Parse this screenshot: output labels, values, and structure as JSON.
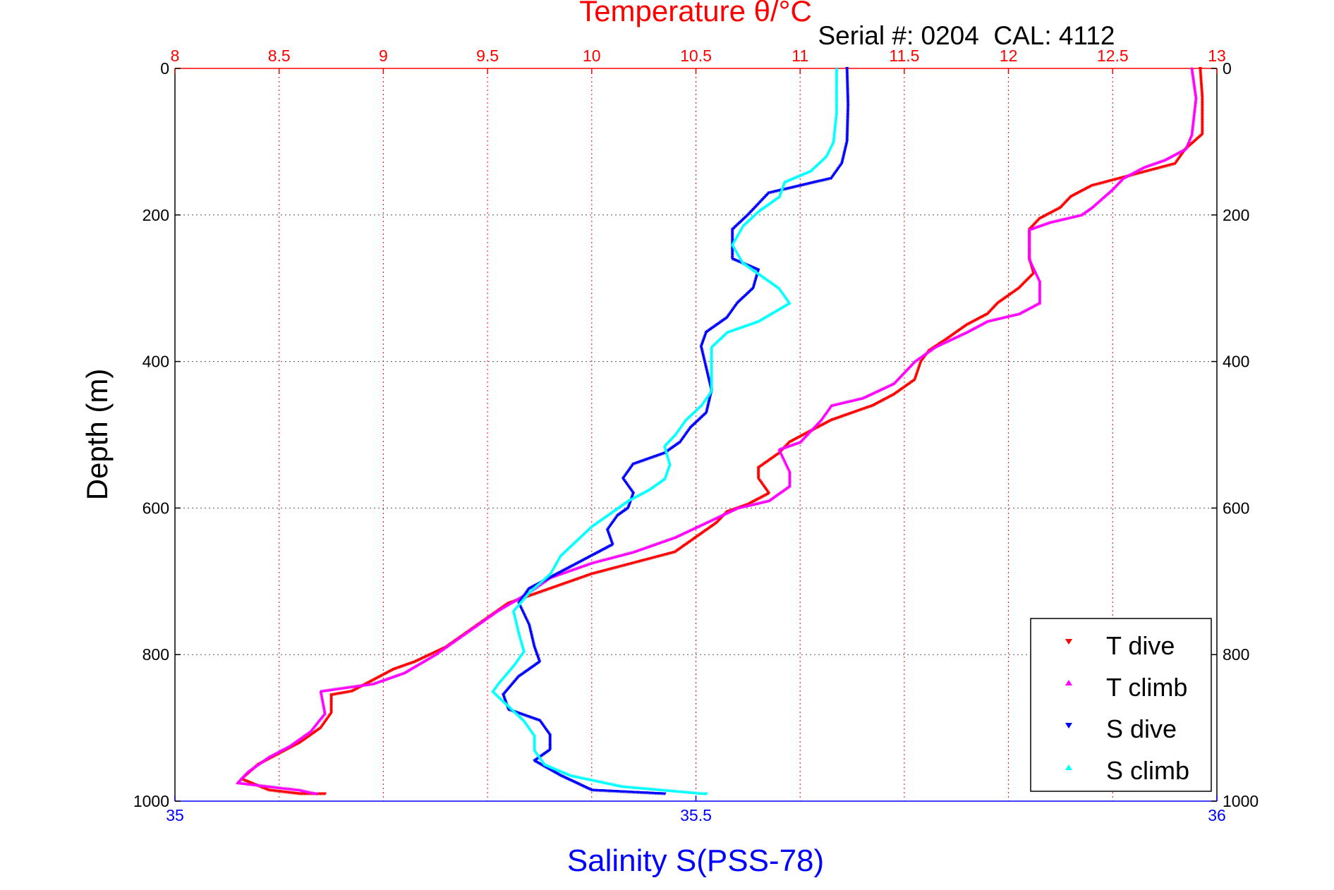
{
  "chart_data": {
    "type": "scatter",
    "title": "Temperature θ/°C",
    "subtitle": "Serial #: 0204  CAL: 4112",
    "xlabel": "Salinity S(PSS-78)",
    "ylabel": "Depth (m)",
    "top_axis": {
      "label": "Temperature θ/°C",
      "range": [
        8,
        13
      ],
      "ticks": [
        "8",
        "8.5",
        "9",
        "9.5",
        "10",
        "10.5",
        "11",
        "11.5",
        "12",
        "12.5",
        "13"
      ],
      "color": "#ff0000"
    },
    "bottom_axis": {
      "label": "Salinity S(PSS-78)",
      "range": [
        35,
        36
      ],
      "ticks": [
        "35",
        "35.5",
        "36"
      ],
      "color": "#0000ff"
    },
    "depth_axis": {
      "range": [
        0,
        1000
      ],
      "reversed": true,
      "ticks": [
        "0",
        "200",
        "400",
        "600",
        "800",
        "1000"
      ]
    },
    "grid": true,
    "legend_position": "bottom-right",
    "series": [
      {
        "name": "T dive",
        "axis": "temperature",
        "color": "#ff0000",
        "marker": "triangle-down",
        "points": [
          [
            12.92,
            0
          ],
          [
            12.93,
            40
          ],
          [
            12.93,
            90
          ],
          [
            12.85,
            110
          ],
          [
            12.8,
            130
          ],
          [
            12.6,
            145
          ],
          [
            12.4,
            160
          ],
          [
            12.3,
            175
          ],
          [
            12.25,
            190
          ],
          [
            12.15,
            205
          ],
          [
            12.1,
            220
          ],
          [
            12.1,
            260
          ],
          [
            12.12,
            280
          ],
          [
            12.05,
            300
          ],
          [
            11.95,
            320
          ],
          [
            11.9,
            335
          ],
          [
            11.8,
            350
          ],
          [
            11.7,
            370
          ],
          [
            11.62,
            385
          ],
          [
            11.58,
            400
          ],
          [
            11.55,
            425
          ],
          [
            11.45,
            445
          ],
          [
            11.35,
            460
          ],
          [
            11.25,
            470
          ],
          [
            11.15,
            480
          ],
          [
            11.05,
            495
          ],
          [
            10.95,
            510
          ],
          [
            10.9,
            525
          ],
          [
            10.8,
            545
          ],
          [
            10.8,
            560
          ],
          [
            10.85,
            580
          ],
          [
            10.75,
            595
          ],
          [
            10.65,
            605
          ],
          [
            10.6,
            620
          ],
          [
            10.5,
            640
          ],
          [
            10.4,
            660
          ],
          [
            10.2,
            675
          ],
          [
            10.0,
            690
          ],
          [
            9.8,
            710
          ],
          [
            9.6,
            730
          ],
          [
            9.5,
            750
          ],
          [
            9.4,
            770
          ],
          [
            9.3,
            790
          ],
          [
            9.15,
            810
          ],
          [
            9.05,
            820
          ],
          [
            8.95,
            835
          ],
          [
            8.85,
            850
          ],
          [
            8.75,
            855
          ],
          [
            8.75,
            880
          ],
          [
            8.7,
            900
          ],
          [
            8.6,
            920
          ],
          [
            8.5,
            935
          ],
          [
            8.4,
            950
          ],
          [
            8.32,
            970
          ],
          [
            8.45,
            985
          ],
          [
            8.6,
            990
          ],
          [
            8.72,
            990
          ]
        ]
      },
      {
        "name": "T climb",
        "axis": "temperature",
        "color": "#ff00ff",
        "marker": "triangle-up",
        "points": [
          [
            12.88,
            0
          ],
          [
            12.9,
            40
          ],
          [
            12.88,
            90
          ],
          [
            12.85,
            110
          ],
          [
            12.75,
            125
          ],
          [
            12.65,
            135
          ],
          [
            12.55,
            150
          ],
          [
            12.5,
            165
          ],
          [
            12.4,
            190
          ],
          [
            12.35,
            200
          ],
          [
            12.2,
            210
          ],
          [
            12.1,
            220
          ],
          [
            12.1,
            260
          ],
          [
            12.15,
            290
          ],
          [
            12.15,
            320
          ],
          [
            12.05,
            335
          ],
          [
            11.9,
            345
          ],
          [
            11.8,
            360
          ],
          [
            11.65,
            380
          ],
          [
            11.55,
            400
          ],
          [
            11.45,
            430
          ],
          [
            11.3,
            450
          ],
          [
            11.15,
            460
          ],
          [
            11.1,
            480
          ],
          [
            11.0,
            510
          ],
          [
            10.9,
            520
          ],
          [
            10.95,
            550
          ],
          [
            10.95,
            570
          ],
          [
            10.85,
            590
          ],
          [
            10.7,
            600
          ],
          [
            10.55,
            620
          ],
          [
            10.4,
            640
          ],
          [
            10.2,
            660
          ],
          [
            10.0,
            675
          ],
          [
            9.8,
            695
          ],
          [
            9.7,
            715
          ],
          [
            9.55,
            740
          ],
          [
            9.45,
            760
          ],
          [
            9.35,
            780
          ],
          [
            9.25,
            800
          ],
          [
            9.1,
            825
          ],
          [
            8.95,
            840
          ],
          [
            8.82,
            845
          ],
          [
            8.7,
            850
          ],
          [
            8.72,
            880
          ],
          [
            8.65,
            905
          ],
          [
            8.55,
            925
          ],
          [
            8.45,
            940
          ],
          [
            8.35,
            960
          ],
          [
            8.3,
            975
          ],
          [
            8.45,
            980
          ],
          [
            8.6,
            985
          ],
          [
            8.68,
            990
          ]
        ]
      },
      {
        "name": "S dive",
        "axis": "salinity",
        "color": "#0000ff",
        "marker": "triangle-down",
        "points": [
          [
            35.645,
            0
          ],
          [
            35.646,
            50
          ],
          [
            35.645,
            100
          ],
          [
            35.64,
            130
          ],
          [
            35.63,
            150
          ],
          [
            35.6,
            160
          ],
          [
            35.57,
            170
          ],
          [
            35.56,
            185
          ],
          [
            35.55,
            200
          ],
          [
            35.535,
            220
          ],
          [
            35.535,
            260
          ],
          [
            35.56,
            275
          ],
          [
            35.555,
            300
          ],
          [
            35.54,
            320
          ],
          [
            35.53,
            340
          ],
          [
            35.51,
            360
          ],
          [
            35.505,
            380
          ],
          [
            35.51,
            410
          ],
          [
            35.515,
            440
          ],
          [
            35.51,
            470
          ],
          [
            35.495,
            490
          ],
          [
            35.485,
            510
          ],
          [
            35.47,
            525
          ],
          [
            35.44,
            540
          ],
          [
            35.43,
            560
          ],
          [
            35.44,
            580
          ],
          [
            35.435,
            600
          ],
          [
            35.425,
            610
          ],
          [
            35.415,
            630
          ],
          [
            35.42,
            650
          ],
          [
            35.4,
            665
          ],
          [
            35.38,
            680
          ],
          [
            35.36,
            695
          ],
          [
            35.34,
            710
          ],
          [
            35.33,
            730
          ],
          [
            35.34,
            760
          ],
          [
            35.345,
            790
          ],
          [
            35.35,
            810
          ],
          [
            35.33,
            830
          ],
          [
            35.315,
            855
          ],
          [
            35.32,
            875
          ],
          [
            35.35,
            890
          ],
          [
            35.36,
            910
          ],
          [
            35.36,
            930
          ],
          [
            35.345,
            945
          ],
          [
            35.37,
            965
          ],
          [
            35.385,
            975
          ],
          [
            35.4,
            985
          ],
          [
            35.47,
            990
          ]
        ]
      },
      {
        "name": "S climb",
        "axis": "salinity",
        "color": "#00ffff",
        "marker": "triangle-up",
        "points": [
          [
            35.635,
            0
          ],
          [
            35.635,
            60
          ],
          [
            35.632,
            100
          ],
          [
            35.625,
            120
          ],
          [
            35.61,
            140
          ],
          [
            35.585,
            155
          ],
          [
            35.58,
            175
          ],
          [
            35.56,
            195
          ],
          [
            35.545,
            215
          ],
          [
            35.535,
            240
          ],
          [
            35.545,
            265
          ],
          [
            35.56,
            280
          ],
          [
            35.58,
            300
          ],
          [
            35.59,
            320
          ],
          [
            35.56,
            345
          ],
          [
            35.53,
            360
          ],
          [
            35.515,
            380
          ],
          [
            35.515,
            410
          ],
          [
            35.515,
            440
          ],
          [
            35.505,
            460
          ],
          [
            35.49,
            480
          ],
          [
            35.48,
            500
          ],
          [
            35.47,
            515
          ],
          [
            35.475,
            540
          ],
          [
            35.47,
            560
          ],
          [
            35.455,
            575
          ],
          [
            35.435,
            590
          ],
          [
            35.42,
            605
          ],
          [
            35.4,
            625
          ],
          [
            35.385,
            645
          ],
          [
            35.37,
            665
          ],
          [
            35.36,
            690
          ],
          [
            35.34,
            715
          ],
          [
            35.325,
            740
          ],
          [
            35.33,
            770
          ],
          [
            35.335,
            795
          ],
          [
            35.325,
            815
          ],
          [
            35.31,
            840
          ],
          [
            35.305,
            850
          ],
          [
            35.32,
            870
          ],
          [
            35.335,
            890
          ],
          [
            35.345,
            910
          ],
          [
            35.345,
            930
          ],
          [
            35.355,
            950
          ],
          [
            35.38,
            965
          ],
          [
            35.43,
            980
          ],
          [
            35.51,
            990
          ]
        ]
      }
    ]
  },
  "legend": {
    "items": [
      {
        "label": "T dive",
        "color": "#ff0000",
        "marker": "triangle-down"
      },
      {
        "label": "T climb",
        "color": "#ff00ff",
        "marker": "triangle-up"
      },
      {
        "label": "S dive",
        "color": "#0000ff",
        "marker": "triangle-down"
      },
      {
        "label": "S climb",
        "color": "#00ffff",
        "marker": "triangle-up"
      }
    ]
  }
}
